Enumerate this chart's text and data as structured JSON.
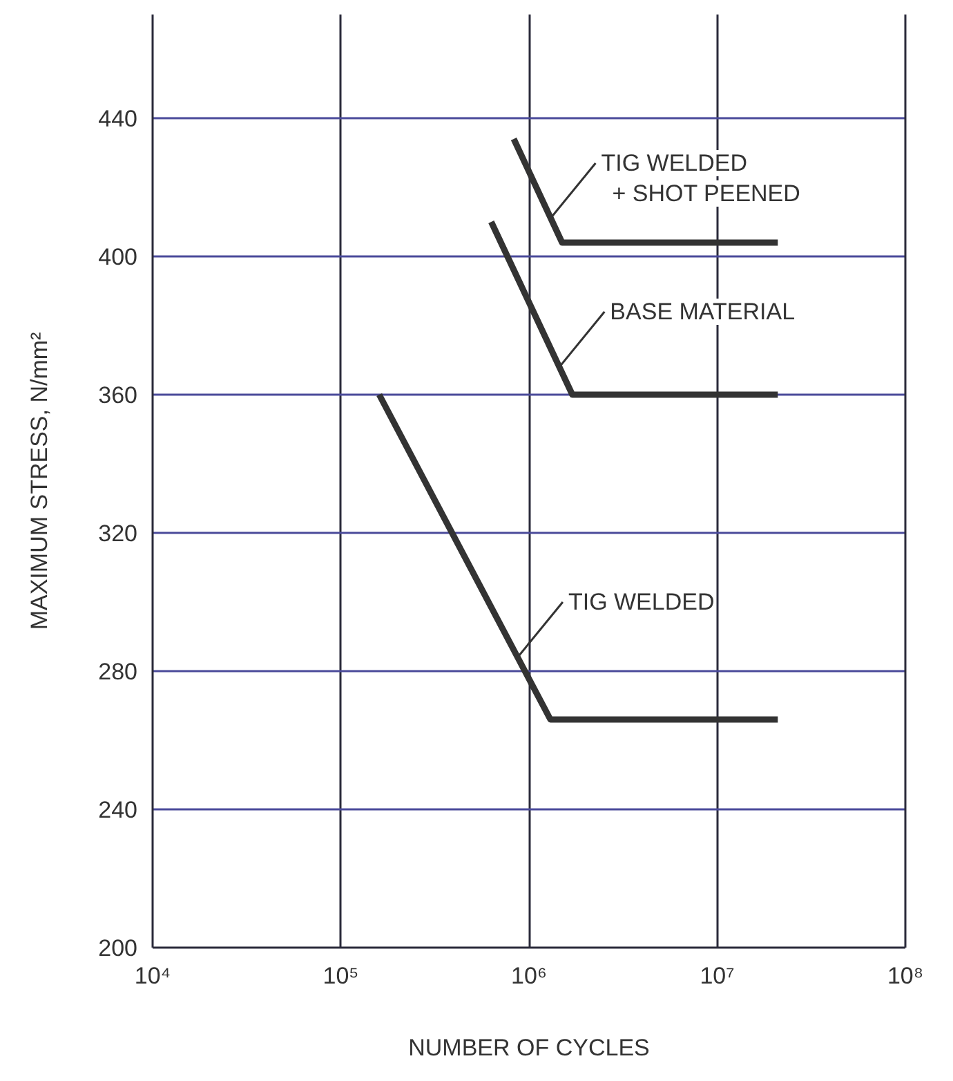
{
  "chart_data": {
    "type": "line",
    "xlabel": "NUMBER OF CYCLES",
    "ylabel": "MAXIMUM STRESS, N/mm²",
    "log": "x",
    "xlim": [
      10000,
      100000000
    ],
    "ylim": [
      200,
      470
    ],
    "xticks": [
      {
        "value": 10000,
        "label": "10⁴"
      },
      {
        "value": 100000,
        "label": "10⁵"
      },
      {
        "value": 1000000,
        "label": "10⁶"
      },
      {
        "value": 10000000,
        "label": "10⁷"
      },
      {
        "value": 100000000,
        "label": "10⁸"
      }
    ],
    "yticks": [
      200,
      240,
      280,
      320,
      360,
      400,
      440
    ],
    "grid": true,
    "series": [
      {
        "color": "#333333",
        "x": [
          830000,
          1500000,
          21000000
        ],
        "values": [
          434,
          404,
          404
        ]
      },
      {
        "color": "#333333",
        "x": [
          630000,
          1700000,
          21000000
        ],
        "values": [
          410,
          360,
          360
        ]
      },
      {
        "color": "#333333",
        "x": [
          160000,
          1300000,
          21000000
        ],
        "values": [
          360,
          266,
          266
        ]
      }
    ],
    "annotations": [
      {
        "text": "TIG WELDED\n+ SHOT PEENED",
        "x": 1300000,
        "y": 411
      },
      {
        "text": "BASE MATERIAL",
        "x": 1450000,
        "y": 368
      },
      {
        "text": "TIG WELDED",
        "x": 870000,
        "y": 284
      }
    ]
  }
}
